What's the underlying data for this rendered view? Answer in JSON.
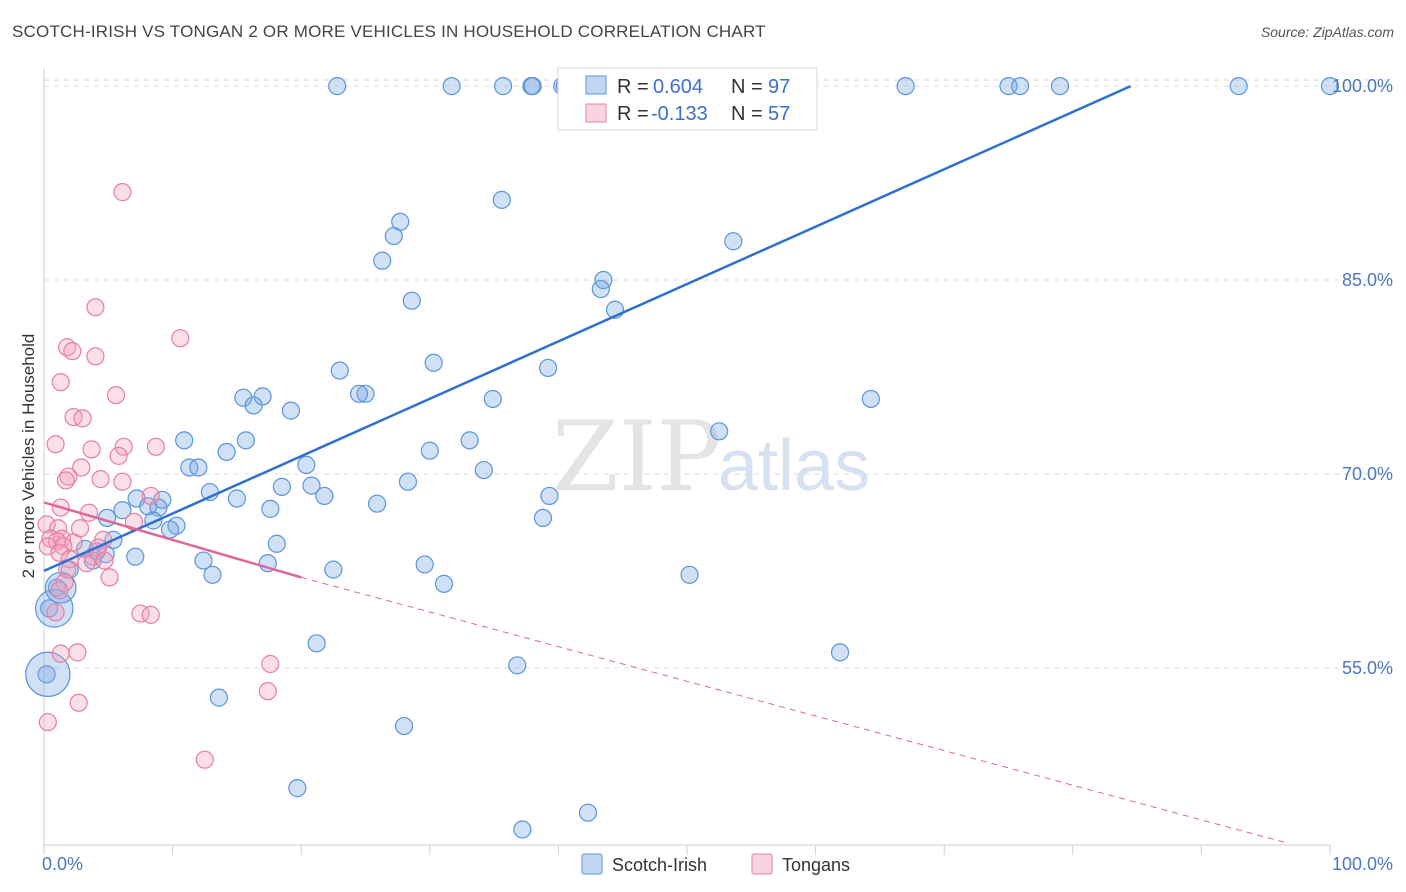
{
  "title": "SCOTCH-IRISH VS TONGAN 2 OR MORE VEHICLES IN HOUSEHOLD CORRELATION CHART",
  "source": "Source: ZipAtlas.com",
  "watermark": {
    "zip": "ZIP",
    "atlas": "atlas"
  },
  "colors": {
    "blue": "#5b95dc",
    "blue_fill": "rgba(120,165,225,0.35)",
    "blue_line": "#2f6fd1",
    "pink": "#e87fa3",
    "pink_fill": "rgba(240,160,190,0.35)",
    "pink_line": "#e0679a",
    "grid": "#dddddd",
    "tick_text": "#4a78c2"
  },
  "legend": {
    "rows": [
      {
        "r_label": "R = ",
        "r_value": "0.604",
        "n_label": "N = ",
        "n_value": "97"
      },
      {
        "r_label": "R = ",
        "r_value": "-0.133",
        "n_label": "N = ",
        "n_value": "57"
      }
    ]
  },
  "bottom_legend": [
    "Scotch-Irish",
    "Tongans"
  ],
  "chart_data": {
    "type": "scatter",
    "title": "SCOTCH-IRISH VS TONGAN 2 OR MORE VEHICLES IN HOUSEHOLD CORRELATION CHART",
    "xlabel": "",
    "ylabel": "2 or more Vehicles in Household",
    "xlim": [
      0,
      100
    ],
    "ylim": [
      41.3,
      101.4
    ],
    "x_tick_labels": [
      "0.0%",
      "100.0%"
    ],
    "y_ticks": [
      55.0,
      70.0,
      85.0,
      100.0
    ],
    "y_tick_labels": [
      "55.0%",
      "70.0%",
      "85.0%",
      "100.0%"
    ],
    "grid": true,
    "series": [
      {
        "name": "Scotch-Irish",
        "R": 0.604,
        "N": 97,
        "trend": {
          "x0": 0,
          "y0": 62.5,
          "x1": 84.5,
          "y1": 100.0,
          "style": "solid"
        },
        "points": [
          [
            22.8,
            100
          ],
          [
            31.7,
            100
          ],
          [
            35.7,
            100
          ],
          [
            37.9,
            100
          ],
          [
            38.0,
            100
          ],
          [
            40.3,
            100
          ],
          [
            40.5,
            100
          ],
          [
            44.0,
            100
          ],
          [
            56.8,
            100
          ],
          [
            67.0,
            100
          ],
          [
            75.0,
            100
          ],
          [
            75.9,
            100
          ],
          [
            79.0,
            100
          ],
          [
            92.9,
            100
          ],
          [
            100,
            100
          ],
          [
            53.1,
            100
          ],
          [
            56.0,
            100
          ],
          [
            35.6,
            91.2
          ],
          [
            27.7,
            89.5
          ],
          [
            27.2,
            88.4
          ],
          [
            53.6,
            88.0
          ],
          [
            26.3,
            86.5
          ],
          [
            43.5,
            85.0
          ],
          [
            43.3,
            84.3
          ],
          [
            28.6,
            83.4
          ],
          [
            44.4,
            82.7
          ],
          [
            30.3,
            78.6
          ],
          [
            23.0,
            78.0
          ],
          [
            39.2,
            78.2
          ],
          [
            25.0,
            76.2
          ],
          [
            24.5,
            76.2
          ],
          [
            15.5,
            75.9
          ],
          [
            17.0,
            76.0
          ],
          [
            16.3,
            75.3
          ],
          [
            19.2,
            74.9
          ],
          [
            34.9,
            75.8
          ],
          [
            64.3,
            75.8
          ],
          [
            52.5,
            73.3
          ],
          [
            10.9,
            72.6
          ],
          [
            15.7,
            72.6
          ],
          [
            14.2,
            71.7
          ],
          [
            30.0,
            71.8
          ],
          [
            33.1,
            72.6
          ],
          [
            11.3,
            70.5
          ],
          [
            12.0,
            70.5
          ],
          [
            20.4,
            70.7
          ],
          [
            34.2,
            70.3
          ],
          [
            28.3,
            69.4
          ],
          [
            18.5,
            69.0
          ],
          [
            20.8,
            69.1
          ],
          [
            12.9,
            68.6
          ],
          [
            15.0,
            68.1
          ],
          [
            21.8,
            68.3
          ],
          [
            25.9,
            67.7
          ],
          [
            7.2,
            68.1
          ],
          [
            9.2,
            68.0
          ],
          [
            8.1,
            67.5
          ],
          [
            6.1,
            67.2
          ],
          [
            8.9,
            67.4
          ],
          [
            17.6,
            67.3
          ],
          [
            39.3,
            68.3
          ],
          [
            38.8,
            66.6
          ],
          [
            4.9,
            66.6
          ],
          [
            8.5,
            66.4
          ],
          [
            10.3,
            66.0
          ],
          [
            9.8,
            65.7
          ],
          [
            18.1,
            64.6
          ],
          [
            5.4,
            64.9
          ],
          [
            3.2,
            64.2
          ],
          [
            4.1,
            64.0
          ],
          [
            4.8,
            63.8
          ],
          [
            7.1,
            63.6
          ],
          [
            3.8,
            63.3
          ],
          [
            12.4,
            63.3
          ],
          [
            17.4,
            63.1
          ],
          [
            2.0,
            62.6
          ],
          [
            13.1,
            62.2
          ],
          [
            22.5,
            62.6
          ],
          [
            29.6,
            63.0
          ],
          [
            31.1,
            61.5
          ],
          [
            50.2,
            62.2
          ],
          [
            1.0,
            61.2
          ],
          [
            0.4,
            59.6
          ],
          [
            0.2,
            54.5
          ],
          [
            21.2,
            56.9
          ],
          [
            36.8,
            55.2
          ],
          [
            61.9,
            56.2
          ],
          [
            13.6,
            52.7
          ],
          [
            28.0,
            50.5
          ],
          [
            19.7,
            45.7
          ],
          [
            37.2,
            42.5
          ],
          [
            42.3,
            43.8
          ]
        ],
        "large_points": [
          [
            0.8,
            59.6,
            2.2
          ],
          [
            0.3,
            54.5,
            2.6
          ],
          [
            1.3,
            61.2,
            1.8
          ]
        ]
      },
      {
        "name": "Tongans",
        "R": -0.133,
        "N": 57,
        "trend": {
          "x0": 0,
          "y0": 67.8,
          "x1": 20.0,
          "y1": 62.0,
          "style": "solid",
          "dashed_to_x": 96.5,
          "dashed_to_y": 41.5
        },
        "points": [
          [
            6.1,
            91.8
          ],
          [
            4.0,
            82.9
          ],
          [
            10.6,
            80.5
          ],
          [
            1.8,
            79.8
          ],
          [
            4.0,
            79.1
          ],
          [
            2.2,
            79.5
          ],
          [
            1.3,
            77.1
          ],
          [
            5.6,
            76.1
          ],
          [
            2.3,
            74.4
          ],
          [
            3.0,
            74.3
          ],
          [
            0.9,
            72.3
          ],
          [
            3.7,
            71.9
          ],
          [
            6.2,
            72.1
          ],
          [
            8.7,
            72.1
          ],
          [
            5.8,
            71.4
          ],
          [
            2.9,
            70.5
          ],
          [
            1.9,
            69.8
          ],
          [
            1.7,
            69.5
          ],
          [
            4.4,
            69.6
          ],
          [
            6.1,
            69.4
          ],
          [
            8.3,
            68.3
          ],
          [
            1.3,
            67.4
          ],
          [
            3.5,
            67.0
          ],
          [
            7.0,
            66.3
          ],
          [
            0.2,
            66.1
          ],
          [
            1.1,
            65.8
          ],
          [
            2.8,
            65.8
          ],
          [
            0.5,
            65.0
          ],
          [
            1.4,
            65.0
          ],
          [
            1.0,
            64.8
          ],
          [
            2.3,
            64.7
          ],
          [
            4.6,
            64.9
          ],
          [
            0.3,
            64.4
          ],
          [
            1.5,
            64.4
          ],
          [
            4.2,
            64.3
          ],
          [
            1.2,
            63.9
          ],
          [
            3.8,
            63.6
          ],
          [
            2.0,
            63.4
          ],
          [
            3.3,
            63.1
          ],
          [
            4.7,
            63.3
          ],
          [
            1.8,
            62.6
          ],
          [
            5.1,
            62.0
          ],
          [
            1.6,
            61.6
          ],
          [
            1.2,
            61.0
          ],
          [
            0.9,
            59.3
          ],
          [
            7.5,
            59.2
          ],
          [
            8.3,
            59.1
          ],
          [
            1.3,
            56.1
          ],
          [
            2.6,
            56.2
          ],
          [
            17.6,
            55.3
          ],
          [
            17.4,
            53.2
          ],
          [
            2.7,
            52.3
          ],
          [
            0.3,
            50.8
          ],
          [
            12.5,
            47.9
          ]
        ],
        "large_points": []
      }
    ]
  }
}
